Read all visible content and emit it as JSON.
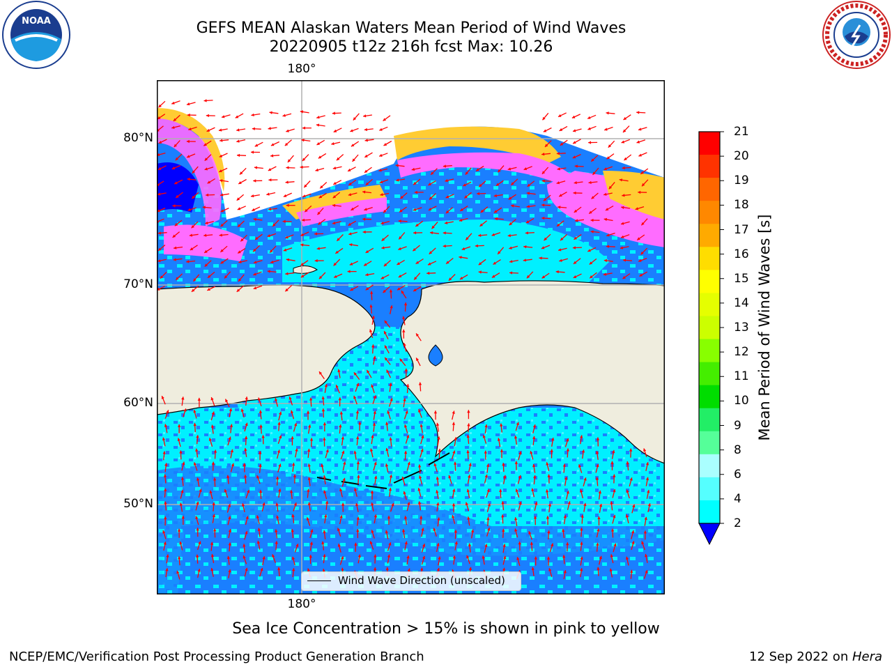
{
  "title": {
    "line1": "GEFS MEAN Alaskan Waters Mean Period of Wind Waves",
    "line2": "20220905 t12z 216h fcst   Max: 10.26"
  },
  "logos": {
    "left": "NOAA",
    "right": "NATIONAL WEATHER SERVICE"
  },
  "map": {
    "lat_labels": [
      "80°N",
      "70°N",
      "60°N",
      "50°N"
    ],
    "lon_label_top": "180°",
    "lon_label_bottom": "180°",
    "legend_label": "Wind Wave Direction (unscaled)",
    "colors": {
      "land": "#efedde",
      "ocean_low": "#1a7fff",
      "ocean_mid": "#00f0ff",
      "ocean_high": "#4cf5ff",
      "ice_pink": "#ff6cff",
      "ice_yellow": "#ffff33",
      "ice_orange": "#ffcc33",
      "arrow": "#ff0000",
      "grid": "#b0b0b0"
    }
  },
  "colorbar": {
    "label": "Mean Period of Wind Waves [s]",
    "ticks": [
      "21",
      "20",
      "19",
      "18",
      "17",
      "16",
      "15",
      "14",
      "13",
      "12",
      "11",
      "10",
      "9",
      "8",
      "6",
      "4",
      "2"
    ],
    "colors": [
      "#ff0000",
      "#ff3300",
      "#ff6600",
      "#ff8800",
      "#ffaa00",
      "#ffdd00",
      "#ffff00",
      "#e5ff00",
      "#ccff00",
      "#88ff00",
      "#44ee00",
      "#00dd00",
      "#22ee66",
      "#55ff99",
      "#aaffff",
      "#55ffff",
      "#00ffff",
      "#0080ff"
    ],
    "under_color": "#0000ff"
  },
  "note": "Sea Ice Concentration > 15% is shown in pink to yellow",
  "footer": {
    "left": "NCEP/EMC/Verification Post Processing Product Generation Branch",
    "right_date": "12 Sep 2022 on ",
    "right_machine": "Hera"
  }
}
